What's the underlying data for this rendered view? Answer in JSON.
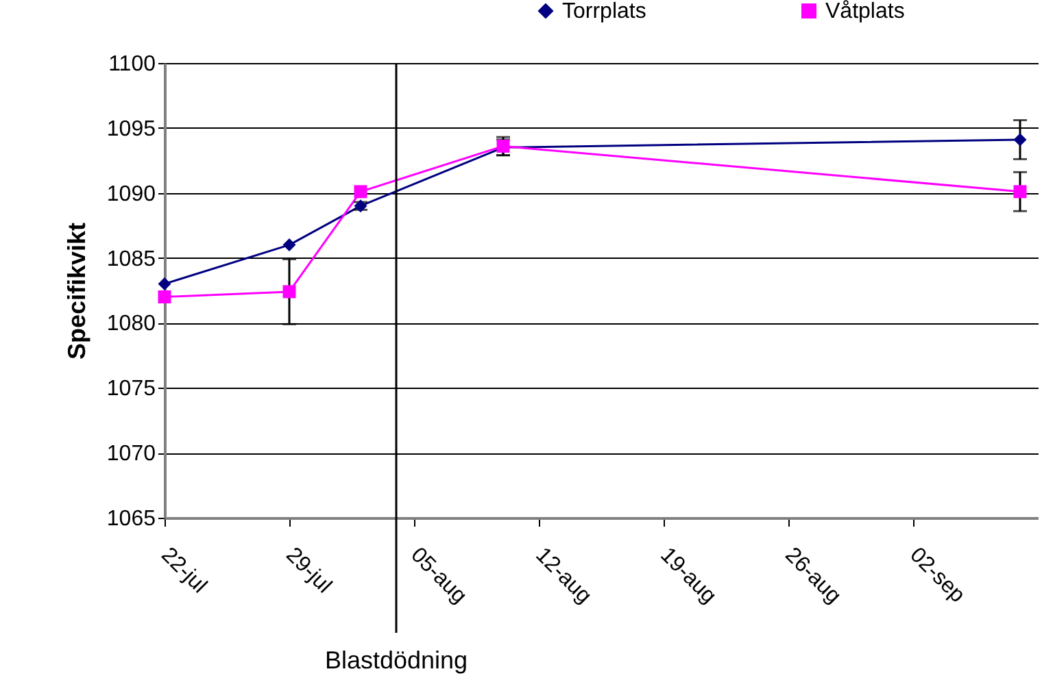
{
  "chart_data": {
    "type": "line",
    "ylabel": "Specifikvikt",
    "xlim": [
      "--07-22",
      "--09-09"
    ],
    "xticks": [
      {
        "value": "--07-22",
        "label": "22-jul"
      },
      {
        "value": "--07-29",
        "label": "29-jul"
      },
      {
        "value": "--08-05",
        "label": "05-aug"
      },
      {
        "value": "--08-12",
        "label": "12-aug"
      },
      {
        "value": "--08-19",
        "label": "19-aug"
      },
      {
        "value": "--08-26",
        "label": "26-aug"
      },
      {
        "value": "--09-02",
        "label": "02-sep"
      }
    ],
    "ylim": [
      1065,
      1100
    ],
    "yticks": [
      1065,
      1070,
      1075,
      1080,
      1085,
      1090,
      1095,
      1100
    ],
    "x": [
      "--07-22",
      "--07-29",
      "--08-02",
      "--08-10",
      "--09-08"
    ],
    "series": [
      {
        "name": "Torrplats",
        "color": "#000080",
        "marker": "diamond",
        "values": [
          1083,
          1086,
          1089,
          1093.5,
          1094.1
        ],
        "errors": [
          null,
          null,
          0.3,
          0.6,
          1.5
        ]
      },
      {
        "name": "Våtplats",
        "color": "#ff00ff",
        "marker": "square",
        "values": [
          1082,
          1082.4,
          1090.1,
          1093.6,
          1090.1
        ],
        "errors": [
          null,
          2.5,
          null,
          0.7,
          1.5
        ]
      }
    ],
    "ref_lines": [
      {
        "axis": "x",
        "value": "--08-04",
        "label": "Blastdödning",
        "color": "#000000"
      }
    ],
    "grid": "y",
    "legend": "top right"
  }
}
